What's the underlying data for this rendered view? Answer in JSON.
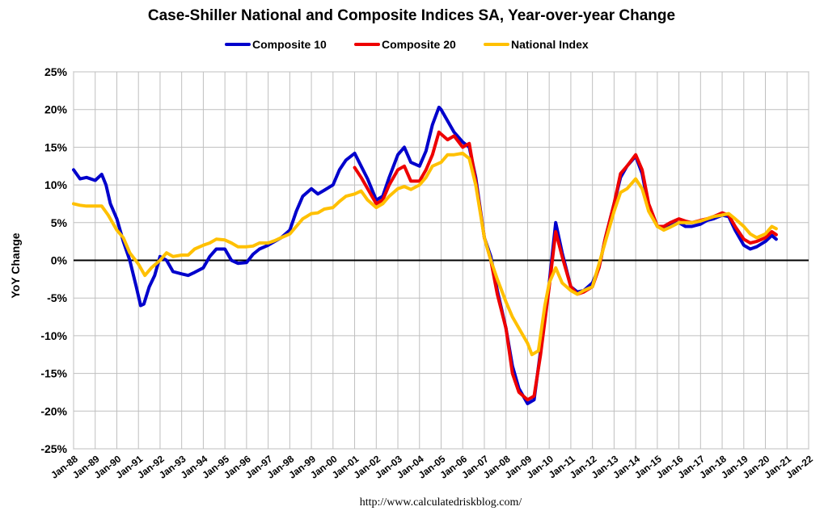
{
  "chart_data": {
    "type": "line",
    "title": "Case-Shiller National and Composite Indices SA, Year-over-year Change",
    "ylabel": "YoY Change",
    "xlabel": "",
    "source": "http://www.calculatedriskblog.com/",
    "ylim": [
      -25,
      25
    ],
    "yticks": [
      25,
      20,
      15,
      10,
      5,
      0,
      -5,
      -10,
      -15,
      -20,
      -25
    ],
    "ytick_labels": [
      "25%",
      "20%",
      "15%",
      "10%",
      "5%",
      "0%",
      "-5%",
      "-10%",
      "-15%",
      "-20%",
      "-25%"
    ],
    "xlim": [
      1988.0,
      2022.0
    ],
    "xtick_labels": [
      "Jan-88",
      "Jan-89",
      "Jan-90",
      "Jan-91",
      "Jan-92",
      "Jan-93",
      "Jan-94",
      "Jan-95",
      "Jan-96",
      "Jan-97",
      "Jan-98",
      "Jan-99",
      "Jan-00",
      "Jan-01",
      "Jan-02",
      "Jan-03",
      "Jan-04",
      "Jan-05",
      "Jan-06",
      "Jan-07",
      "Jan-08",
      "Jan-09",
      "Jan-10",
      "Jan-11",
      "Jan-12",
      "Jan-13",
      "Jan-14",
      "Jan-15",
      "Jan-16",
      "Jan-17",
      "Jan-18",
      "Jan-19",
      "Jan-20",
      "Jan-21",
      "Jan-22"
    ],
    "grid": true,
    "legend_position": "top-center",
    "series": [
      {
        "name": "Composite 10",
        "color": "#0000CC",
        "x": [
          1988.0,
          1988.3,
          1988.6,
          1989.0,
          1989.3,
          1989.5,
          1989.7,
          1990.0,
          1990.3,
          1990.6,
          1990.9,
          1991.1,
          1991.25,
          1991.5,
          1991.75,
          1992.0,
          1992.3,
          1992.6,
          1993.0,
          1993.3,
          1993.6,
          1994.0,
          1994.3,
          1994.6,
          1995.0,
          1995.3,
          1995.6,
          1996.0,
          1996.3,
          1996.6,
          1997.0,
          1997.3,
          1997.6,
          1998.0,
          1998.3,
          1998.6,
          1999.0,
          1999.3,
          1999.6,
          2000.0,
          2000.3,
          2000.6,
          2001.0,
          2001.3,
          2001.6,
          2002.0,
          2002.3,
          2002.6,
          2003.0,
          2003.3,
          2003.6,
          2004.0,
          2004.3,
          2004.6,
          2004.9,
          2005.0,
          2005.3,
          2005.6,
          2006.0,
          2006.3,
          2006.6,
          2007.0,
          2007.3,
          2007.6,
          2008.0,
          2008.3,
          2008.6,
          2009.0,
          2009.3,
          2009.6,
          2010.0,
          2010.3,
          2010.6,
          2011.0,
          2011.3,
          2011.6,
          2012.0,
          2012.3,
          2012.6,
          2013.0,
          2013.3,
          2013.6,
          2014.0,
          2014.3,
          2014.6,
          2015.0,
          2015.3,
          2015.6,
          2016.0,
          2016.3,
          2016.6,
          2017.0,
          2017.3,
          2017.6,
          2018.0,
          2018.3,
          2018.6,
          2019.0,
          2019.3,
          2019.6,
          2020.0,
          2020.3,
          2020.5
        ],
        "values": [
          12.0,
          10.8,
          11.0,
          10.6,
          11.4,
          10.0,
          7.5,
          5.5,
          2.5,
          0.0,
          -3.5,
          -6.0,
          -5.8,
          -3.5,
          -2.0,
          0.5,
          0.0,
          -1.5,
          -1.8,
          -2.0,
          -1.6,
          -1.0,
          0.5,
          1.5,
          1.5,
          0.0,
          -0.4,
          -0.3,
          0.8,
          1.5,
          2.0,
          2.5,
          3.0,
          4.0,
          6.5,
          8.5,
          9.5,
          8.8,
          9.3,
          10.0,
          12.0,
          13.3,
          14.2,
          12.5,
          10.8,
          8.0,
          8.5,
          11.0,
          14.0,
          15.0,
          13.0,
          12.5,
          14.5,
          18.0,
          20.3,
          20.0,
          18.5,
          17.0,
          15.7,
          15.0,
          11.0,
          3.0,
          0.5,
          -4.0,
          -9.0,
          -14.0,
          -17.0,
          -19.0,
          -18.5,
          -12.0,
          -3.0,
          5.0,
          1.0,
          -3.5,
          -4.2,
          -4.0,
          -3.0,
          -1.0,
          3.0,
          7.5,
          11.0,
          12.5,
          13.8,
          11.5,
          7.0,
          4.5,
          4.2,
          4.8,
          5.0,
          4.5,
          4.5,
          4.8,
          5.3,
          5.5,
          6.0,
          5.8,
          4.0,
          2.0,
          1.5,
          1.8,
          2.5,
          3.3,
          2.8
        ]
      },
      {
        "name": "Composite 20",
        "color": "#EE0000",
        "x": [
          2001.0,
          2001.3,
          2001.6,
          2002.0,
          2002.3,
          2002.6,
          2003.0,
          2003.3,
          2003.6,
          2004.0,
          2004.3,
          2004.6,
          2004.9,
          2005.3,
          2005.6,
          2006.0,
          2006.3,
          2006.6,
          2007.0,
          2007.3,
          2007.6,
          2008.0,
          2008.3,
          2008.6,
          2009.0,
          2009.3,
          2009.6,
          2010.0,
          2010.3,
          2010.6,
          2011.0,
          2011.3,
          2011.6,
          2012.0,
          2012.3,
          2012.6,
          2013.0,
          2013.3,
          2013.6,
          2014.0,
          2014.3,
          2014.6,
          2015.0,
          2015.3,
          2015.6,
          2016.0,
          2016.3,
          2016.6,
          2017.0,
          2017.3,
          2017.6,
          2018.0,
          2018.3,
          2018.6,
          2019.0,
          2019.3,
          2019.6,
          2020.0,
          2020.3,
          2020.5
        ],
        "values": [
          12.3,
          11.0,
          9.5,
          7.5,
          8.0,
          10.0,
          12.0,
          12.5,
          10.5,
          10.5,
          12.0,
          14.0,
          17.0,
          16.0,
          16.5,
          15.0,
          15.5,
          10.5,
          3.0,
          0.0,
          -4.5,
          -9.0,
          -15.0,
          -17.5,
          -18.5,
          -18.0,
          -12.5,
          -3.5,
          3.8,
          0.5,
          -3.5,
          -4.5,
          -4.2,
          -3.5,
          -1.0,
          3.0,
          7.5,
          11.5,
          12.5,
          14.0,
          12.0,
          7.5,
          4.5,
          4.5,
          5.0,
          5.5,
          5.2,
          5.0,
          5.3,
          5.5,
          5.8,
          6.3,
          6.0,
          4.5,
          2.8,
          2.3,
          2.5,
          3.0,
          3.8,
          3.4
        ]
      },
      {
        "name": "National Index",
        "color": "#FFC000",
        "x": [
          1988.0,
          1988.3,
          1988.6,
          1989.0,
          1989.3,
          1989.6,
          1990.0,
          1990.3,
          1990.6,
          1991.0,
          1991.3,
          1991.6,
          1992.0,
          1992.3,
          1992.6,
          1993.0,
          1993.3,
          1993.6,
          1994.0,
          1994.3,
          1994.6,
          1995.0,
          1995.3,
          1995.6,
          1996.0,
          1996.3,
          1996.6,
          1997.0,
          1997.3,
          1997.6,
          1998.0,
          1998.3,
          1998.6,
          1999.0,
          1999.3,
          1999.6,
          2000.0,
          2000.3,
          2000.6,
          2001.0,
          2001.3,
          2001.6,
          2002.0,
          2002.3,
          2002.6,
          2003.0,
          2003.3,
          2003.6,
          2004.0,
          2004.3,
          2004.6,
          2005.0,
          2005.3,
          2005.6,
          2006.0,
          2006.3,
          2006.6,
          2007.0,
          2007.3,
          2007.6,
          2008.0,
          2008.3,
          2008.6,
          2009.0,
          2009.2,
          2009.5,
          2009.8,
          2010.0,
          2010.3,
          2010.6,
          2011.0,
          2011.3,
          2011.6,
          2012.0,
          2012.3,
          2012.6,
          2013.0,
          2013.3,
          2013.6,
          2014.0,
          2014.3,
          2014.6,
          2015.0,
          2015.3,
          2015.6,
          2016.0,
          2016.3,
          2016.6,
          2017.0,
          2017.3,
          2017.6,
          2018.0,
          2018.3,
          2018.6,
          2019.0,
          2019.3,
          2019.6,
          2020.0,
          2020.3,
          2020.5
        ],
        "values": [
          7.5,
          7.3,
          7.2,
          7.2,
          7.2,
          6.0,
          4.0,
          3.0,
          1.0,
          -0.5,
          -2.0,
          -1.0,
          0.0,
          1.0,
          0.5,
          0.7,
          0.7,
          1.5,
          2.0,
          2.3,
          2.8,
          2.7,
          2.3,
          1.8,
          1.8,
          1.9,
          2.3,
          2.3,
          2.6,
          3.0,
          3.5,
          4.5,
          5.5,
          6.2,
          6.3,
          6.8,
          7.0,
          7.8,
          8.5,
          8.8,
          9.2,
          8.0,
          7.0,
          7.5,
          8.5,
          9.5,
          9.8,
          9.4,
          10.0,
          11.0,
          12.5,
          13.0,
          14.0,
          14.0,
          14.2,
          13.5,
          10.0,
          3.0,
          0.0,
          -2.5,
          -5.5,
          -7.5,
          -9.0,
          -11.0,
          -12.5,
          -12.0,
          -6.0,
          -3.0,
          -1.0,
          -3.0,
          -4.0,
          -4.5,
          -4.0,
          -3.5,
          -0.5,
          2.5,
          6.5,
          9.0,
          9.5,
          10.8,
          9.5,
          6.5,
          4.5,
          4.0,
          4.4,
          5.0,
          5.0,
          5.0,
          5.2,
          5.5,
          5.8,
          6.0,
          6.2,
          5.5,
          4.5,
          3.5,
          3.0,
          3.5,
          4.5,
          4.2
        ]
      }
    ]
  }
}
